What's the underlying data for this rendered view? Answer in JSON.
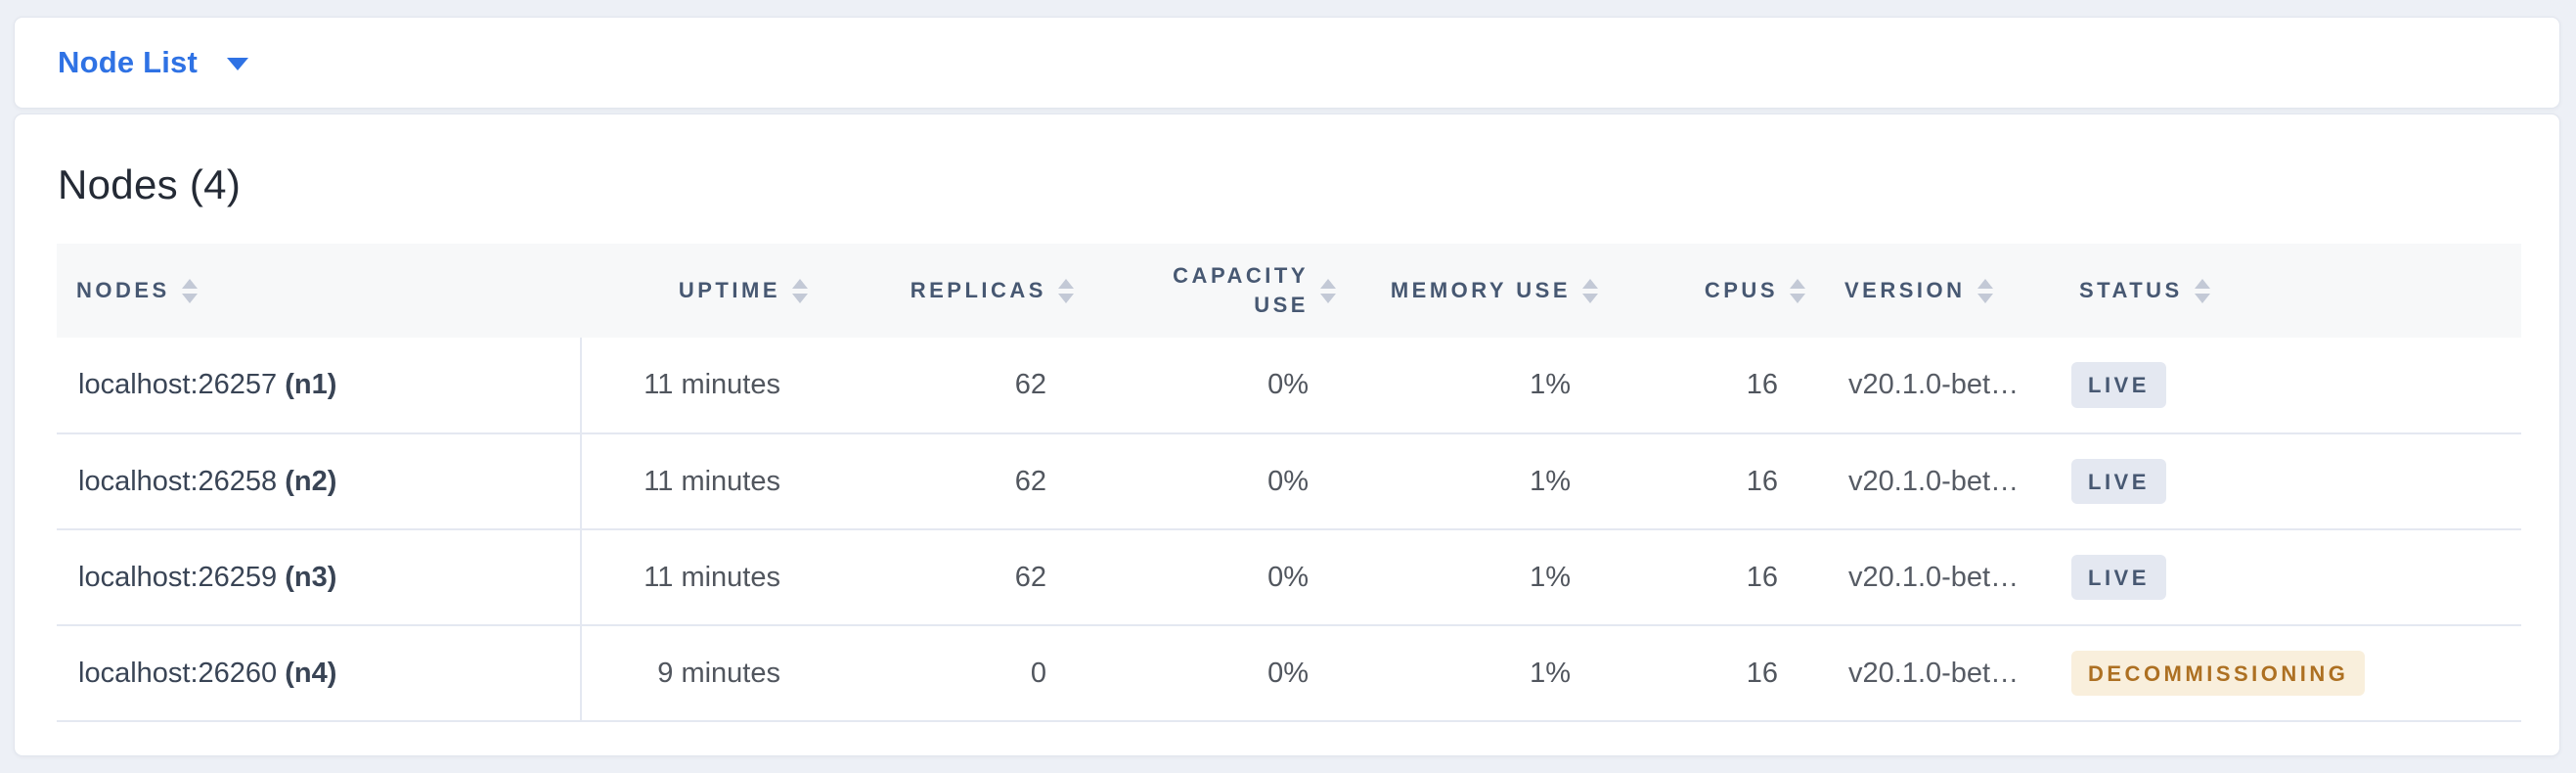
{
  "toolbar": {
    "view_selector": {
      "label": "Node List",
      "icon": "caret-down-icon"
    }
  },
  "panel": {
    "title": "Nodes (4)",
    "table": {
      "columns": [
        {
          "key": "nodes",
          "label": "NODES",
          "align": "left",
          "sort_icon": "sort-icon"
        },
        {
          "key": "uptime",
          "label": "UPTIME",
          "align": "right",
          "sort_icon": "sort-icon"
        },
        {
          "key": "replicas",
          "label": "REPLICAS",
          "align": "right",
          "sort_icon": "sort-icon"
        },
        {
          "key": "capacity_use",
          "label": "CAPACITY USE",
          "align": "right",
          "sort_icon": "sort-icon",
          "wrap": true
        },
        {
          "key": "memory_use",
          "label": "MEMORY USE",
          "align": "right",
          "sort_icon": "sort-icon"
        },
        {
          "key": "cpus",
          "label": "CPUS",
          "align": "right",
          "sort_icon": "sort-icon"
        },
        {
          "key": "version",
          "label": "VERSION",
          "align": "left",
          "sort_icon": "sort-icon"
        },
        {
          "key": "status",
          "label": "STATUS",
          "align": "left",
          "sort_icon": "sort-icon"
        }
      ],
      "rows": [
        {
          "address": "localhost:26257",
          "node_id": "(n1)",
          "uptime": "11 minutes",
          "replicas": "62",
          "capacity_use": "0%",
          "memory_use": "1%",
          "cpus": "16",
          "version": "v20.1.0-bet…",
          "status": {
            "label": "LIVE",
            "type": "live"
          }
        },
        {
          "address": "localhost:26258",
          "node_id": "(n2)",
          "uptime": "11 minutes",
          "replicas": "62",
          "capacity_use": "0%",
          "memory_use": "1%",
          "cpus": "16",
          "version": "v20.1.0-bet…",
          "status": {
            "label": "LIVE",
            "type": "live"
          }
        },
        {
          "address": "localhost:26259",
          "node_id": "(n3)",
          "uptime": "11 minutes",
          "replicas": "62",
          "capacity_use": "0%",
          "memory_use": "1%",
          "cpus": "16",
          "version": "v20.1.0-bet…",
          "status": {
            "label": "LIVE",
            "type": "live"
          }
        },
        {
          "address": "localhost:26260",
          "node_id": "(n4)",
          "uptime": "9 minutes",
          "replicas": "0",
          "capacity_use": "0%",
          "memory_use": "1%",
          "cpus": "16",
          "version": "v20.1.0-bet…",
          "status": {
            "label": "DECOMMISSIONING",
            "type": "decommissioning"
          }
        }
      ]
    }
  },
  "colors": {
    "accent": "#2f72e4",
    "page_bg": "#edf0f6",
    "header_bg": "#f7f8f9",
    "header_text": "#475872",
    "row_border": "#e4e8f1",
    "live_bg": "#e4e8f1",
    "live_text": "#475872",
    "decom_bg": "#f9efdc",
    "decom_text": "#ad7022"
  }
}
